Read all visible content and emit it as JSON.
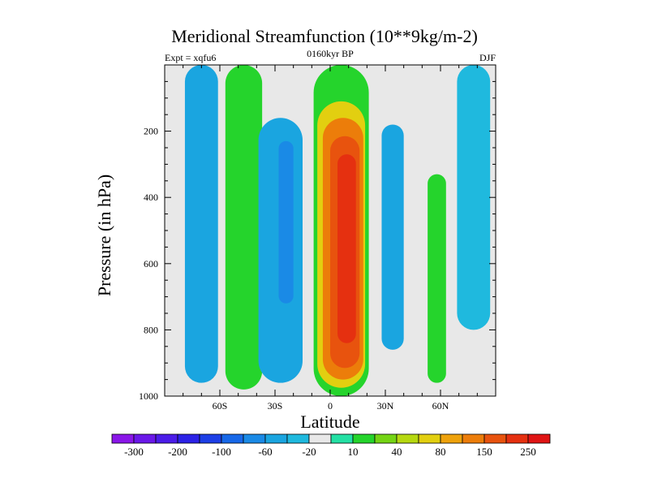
{
  "chart_data": {
    "type": "heatmap",
    "title": "Meridional Streamfunction (10**9kg/m-2)",
    "subtitle": "0160kyr BP",
    "left_label": "Expt = xqfu6",
    "right_label": "DJF",
    "xlabel": "Latitude",
    "ylabel": "Pressure (in hPa)",
    "xlim": [
      -90,
      90
    ],
    "ylim": [
      1000,
      0
    ],
    "x_ticks": [
      {
        "value": -60,
        "label": "60S"
      },
      {
        "value": -30,
        "label": "30S"
      },
      {
        "value": 0,
        "label": "0"
      },
      {
        "value": 30,
        "label": "30N"
      },
      {
        "value": 60,
        "label": "60N"
      }
    ],
    "y_ticks": [
      {
        "value": 200,
        "label": "200"
      },
      {
        "value": 400,
        "label": "400"
      },
      {
        "value": 600,
        "label": "600"
      },
      {
        "value": 800,
        "label": "800"
      },
      {
        "value": 1000,
        "label": "1000"
      }
    ],
    "colorbar": {
      "bins": [
        {
          "color": "#8a16e8",
          "label": "-300"
        },
        {
          "color": "#6a18e8",
          "label": ""
        },
        {
          "color": "#4b1ce8",
          "label": "-200"
        },
        {
          "color": "#2c22e6",
          "label": ""
        },
        {
          "color": "#1d3fe6",
          "label": "-100"
        },
        {
          "color": "#1768e8",
          "label": ""
        },
        {
          "color": "#1a8ae6",
          "label": "-60"
        },
        {
          "color": "#1aa5e0",
          "label": ""
        },
        {
          "color": "#1fb9de",
          "label": "-20"
        },
        {
          "color": "#e8e8e8",
          "label": ""
        },
        {
          "color": "#24e0a4",
          "label": "10"
        },
        {
          "color": "#25d42c",
          "label": ""
        },
        {
          "color": "#74d414",
          "label": "40"
        },
        {
          "color": "#b6d810",
          "label": ""
        },
        {
          "color": "#e2cf10",
          "label": "80"
        },
        {
          "color": "#eea20c",
          "label": ""
        },
        {
          "color": "#ec7d0a",
          "label": "150"
        },
        {
          "color": "#e8530e",
          "label": ""
        },
        {
          "color": "#e53010",
          "label": "250"
        },
        {
          "color": "#df1414",
          "label": ""
        }
      ]
    },
    "regions": [
      {
        "name": "cell-sh-polar",
        "x": -70,
        "p_top": 0,
        "p_bot": 960,
        "half_width": 9,
        "color": "#1aa5e0",
        "level": "-30"
      },
      {
        "name": "cell-sh-mid-band",
        "x": -47,
        "p_top": 0,
        "p_bot": 980,
        "half_width": 10,
        "color": "#25d42c",
        "level": "20"
      },
      {
        "name": "cell-sh-ferrel",
        "x": -27,
        "p_top": 160,
        "p_bot": 960,
        "half_width": 12,
        "color": "#1aa5e0",
        "level": "-30"
      },
      {
        "name": "cell-sh-ferrel-core",
        "x": -24,
        "p_top": 230,
        "p_bot": 720,
        "half_width": 4,
        "color": "#1a8ae6",
        "level": "-50"
      },
      {
        "name": "cell-hadley-green",
        "x": 6,
        "p_top": 0,
        "p_bot": 1000,
        "half_width": 15,
        "color": "#25d42c",
        "level": "30"
      },
      {
        "name": "cell-hadley-yellow",
        "x": 6,
        "p_top": 110,
        "p_bot": 975,
        "half_width": 13,
        "color": "#e2cf10",
        "level": "80"
      },
      {
        "name": "cell-hadley-orange",
        "x": 7,
        "p_top": 160,
        "p_bot": 950,
        "half_width": 11,
        "color": "#ec7d0a",
        "level": "150"
      },
      {
        "name": "cell-hadley-red-orange",
        "x": 8,
        "p_top": 215,
        "p_bot": 915,
        "half_width": 8,
        "color": "#e8530e",
        "level": "200"
      },
      {
        "name": "cell-hadley-core",
        "x": 9,
        "p_top": 270,
        "p_bot": 840,
        "half_width": 5,
        "color": "#e53010",
        "level": "250"
      },
      {
        "name": "cell-nh-ferrel",
        "x": 34,
        "p_top": 180,
        "p_bot": 860,
        "half_width": 6,
        "color": "#1aa5e0",
        "level": "-30"
      },
      {
        "name": "cell-nh-mid-band",
        "x": 58,
        "p_top": 330,
        "p_bot": 960,
        "half_width": 5,
        "color": "#25d42c",
        "level": "20"
      },
      {
        "name": "cell-nh-polar",
        "x": 78,
        "p_top": 0,
        "p_bot": 800,
        "half_width": 9,
        "color": "#1fb9de",
        "level": "-20"
      }
    ]
  }
}
